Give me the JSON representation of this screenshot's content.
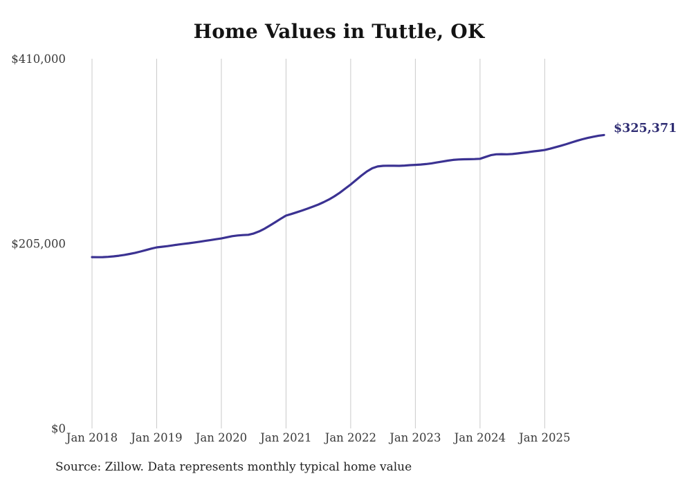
{
  "page": {
    "title": "Home Values in Tuttle, OK",
    "source_note": "Source: Zillow. Data represents monthly typical home value",
    "background": "#ffffff"
  },
  "chart_data": {
    "type": "line",
    "title": "Home Values in Tuttle, OK",
    "series_frequency": "monthly",
    "x_start": "2018-01",
    "x_end": "2025-12",
    "x_tick_labels": [
      "Jan 2018",
      "Jan 2019",
      "Jan 2020",
      "Jan 2021",
      "Jan 2022",
      "Jan 2023",
      "Jan 2024",
      "Jan 2025"
    ],
    "x_tick_month_indices": [
      0,
      12,
      24,
      36,
      48,
      60,
      72,
      84
    ],
    "y_ticks": [
      {
        "value": 410000,
        "label": "$410,000"
      },
      {
        "value": 205000,
        "label": "$205,000"
      },
      {
        "value": 0,
        "label": "$0"
      }
    ],
    "ylim": [
      0,
      410000
    ],
    "grid": "vertical-only",
    "legend": "none",
    "end_label": "$325,371",
    "latest_value": 325371,
    "series": [
      {
        "name": "Typical home value",
        "values": [
          190000,
          189900,
          190000,
          190300,
          190800,
          191500,
          192400,
          193500,
          194700,
          196200,
          197800,
          199400,
          200800,
          201500,
          202200,
          203000,
          203900,
          204700,
          205400,
          206200,
          207100,
          208000,
          208900,
          209800,
          210700,
          212000,
          213200,
          214000,
          214400,
          214700,
          216200,
          218500,
          221500,
          225000,
          228700,
          232400,
          236000,
          237800,
          239700,
          241700,
          243800,
          246000,
          248300,
          251000,
          254000,
          257500,
          261500,
          266000,
          270500,
          275500,
          280500,
          285000,
          288500,
          290500,
          291200,
          291400,
          291300,
          291200,
          291500,
          292000,
          292300,
          292700,
          293200,
          294000,
          295000,
          296000,
          297000,
          297800,
          298300,
          298500,
          298600,
          298700,
          299000,
          301000,
          303000,
          304000,
          304200,
          304000,
          304300,
          305000,
          305800,
          306500,
          307300,
          308000,
          308800,
          310200,
          311800,
          313500,
          315300,
          317200,
          319000,
          320700,
          322200,
          323500,
          324600,
          325371
        ]
      }
    ],
    "colors": {
      "line": "#3b3292",
      "end_label": "#2f2d73",
      "grid": "#c9c9c9",
      "tick_text": "#3a3a3a",
      "title_text": "#131313"
    }
  }
}
